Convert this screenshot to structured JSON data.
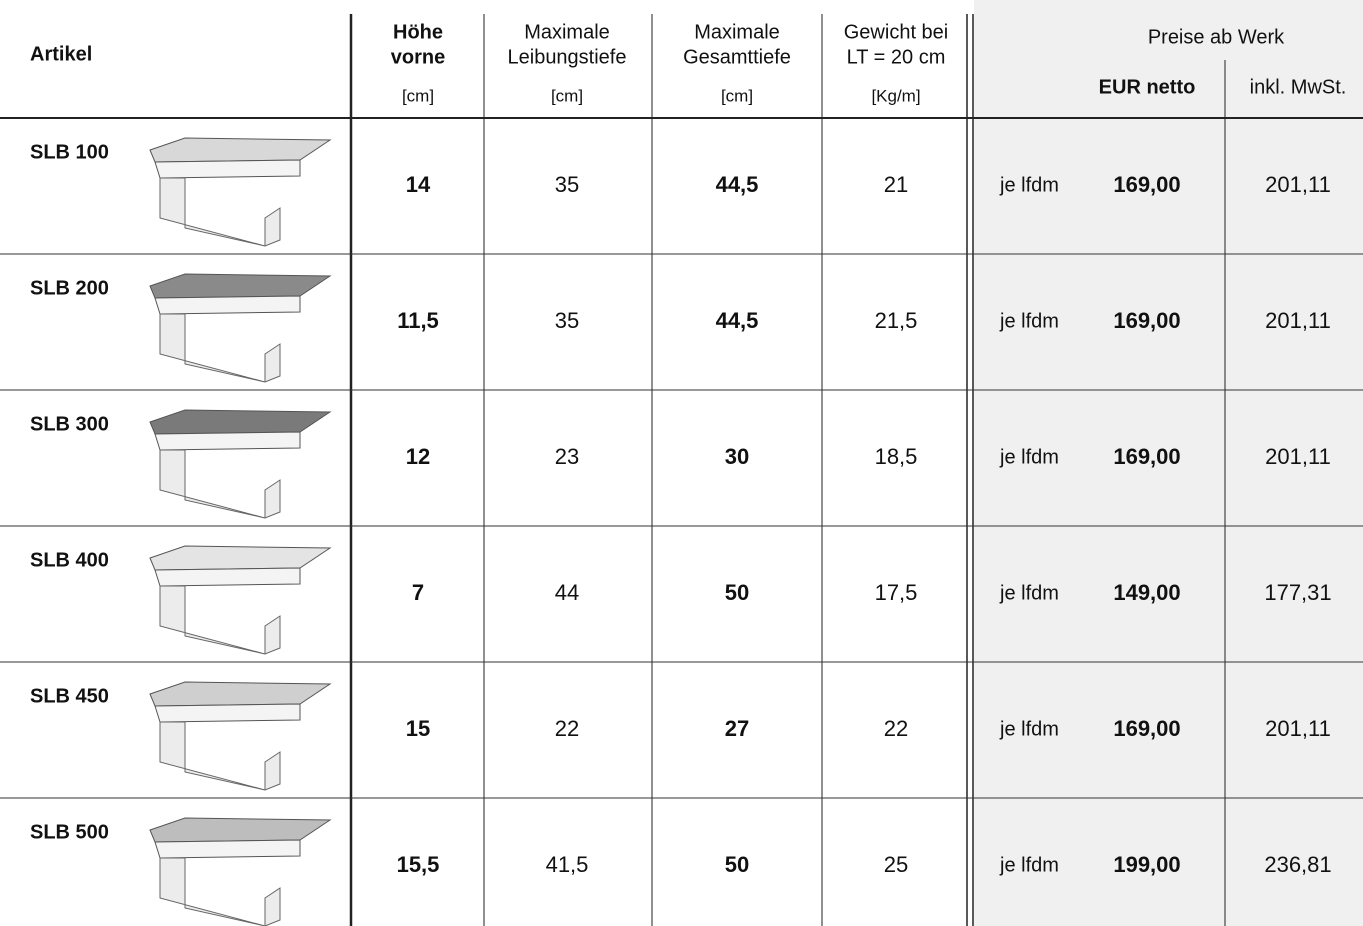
{
  "header": {
    "artikel": "Artikel",
    "hoehe": {
      "line1": "Höhe",
      "line2": "vorne",
      "unit": "[cm]"
    },
    "leibungstiefe": {
      "line1": "Maximale",
      "line2": "Leibungstiefe",
      "unit": "[cm]"
    },
    "gesamttiefe": {
      "line1": "Maximale",
      "line2": "Gesamttiefe",
      "unit": "[cm]"
    },
    "gewicht": {
      "line1": "Gewicht bei",
      "line2": "LT = 20 cm",
      "unit": "[Kg/m]"
    },
    "preise": "Preise ab Werk",
    "eur_netto": "EUR netto",
    "inkl_mwst": "inkl. MwSt."
  },
  "rows": [
    {
      "name": "SLB 100",
      "hoehe": "14",
      "leibungstiefe": "35",
      "gesamttiefe": "44,5",
      "gewicht": "21",
      "einheit": "je lfdm",
      "netto": "169,00",
      "brutto": "201,11"
    },
    {
      "name": "SLB 200",
      "hoehe": "11,5",
      "leibungstiefe": "35",
      "gesamttiefe": "44,5",
      "gewicht": "21,5",
      "einheit": "je lfdm",
      "netto": "169,00",
      "brutto": "201,11"
    },
    {
      "name": "SLB 300",
      "hoehe": "12",
      "leibungstiefe": "23",
      "gesamttiefe": "30",
      "gewicht": "18,5",
      "einheit": "je lfdm",
      "netto": "169,00",
      "brutto": "201,11"
    },
    {
      "name": "SLB 400",
      "hoehe": "7",
      "leibungstiefe": "44",
      "gesamttiefe": "50",
      "gewicht": "17,5",
      "einheit": "je lfdm",
      "netto": "149,00",
      "brutto": "177,31"
    },
    {
      "name": "SLB 450",
      "hoehe": "15",
      "leibungstiefe": "22",
      "gesamttiefe": "27",
      "gewicht": "22",
      "einheit": "je lfdm",
      "netto": "169,00",
      "brutto": "201,11"
    },
    {
      "name": "SLB 500",
      "hoehe": "15,5",
      "leibungstiefe": "41,5",
      "gesamttiefe": "50",
      "gewicht": "25",
      "einheit": "je lfdm",
      "netto": "199,00",
      "brutto": "236,81"
    }
  ]
}
